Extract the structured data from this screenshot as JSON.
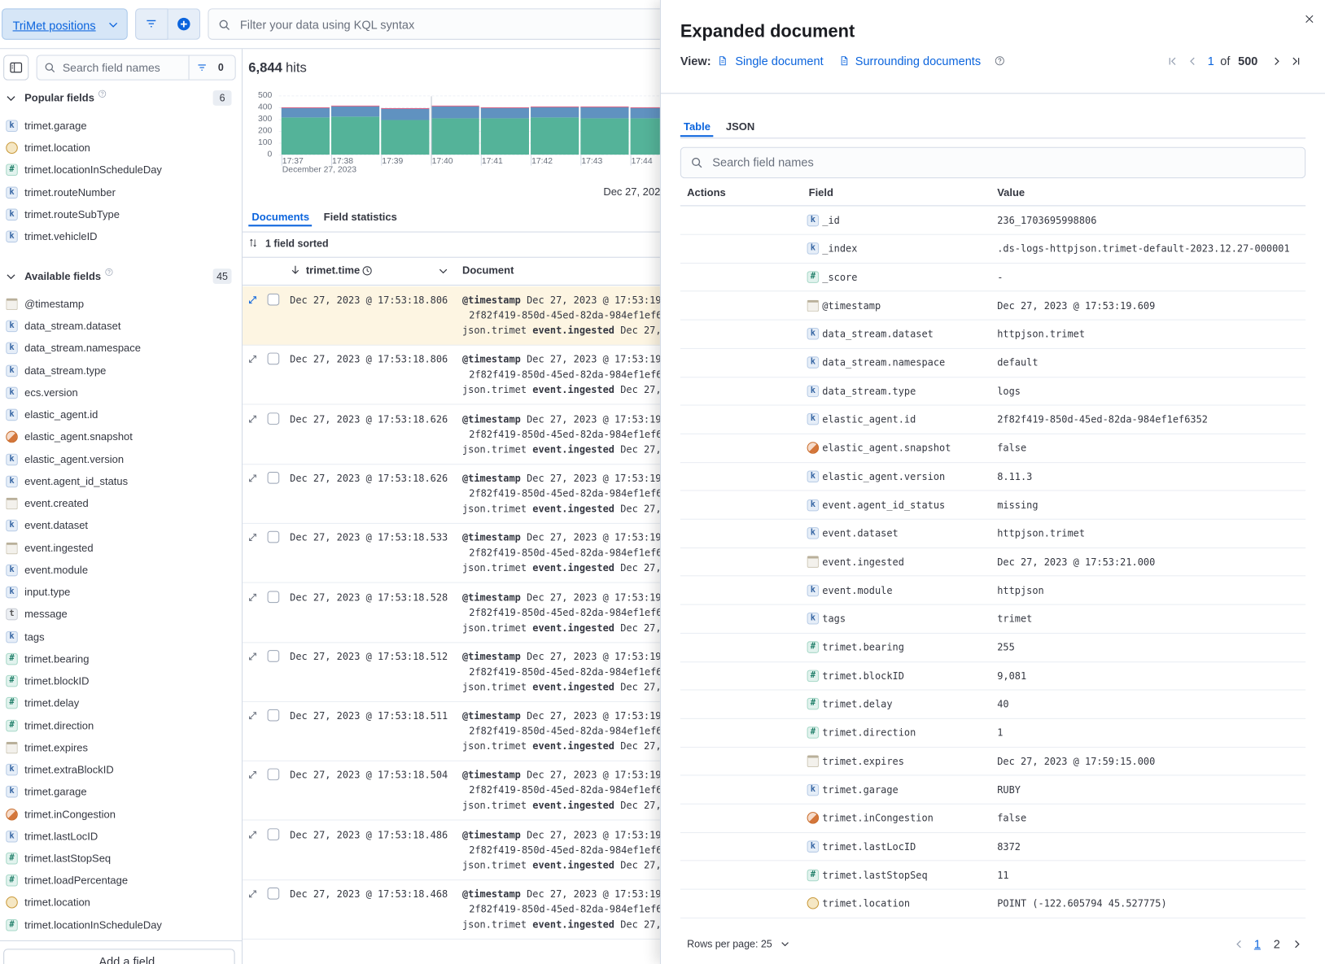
{
  "top_bar": {
    "data_view": "TriMet positions",
    "query_placeholder": "Filter your data using KQL syntax"
  },
  "sidebar": {
    "search_placeholder": "Search field names",
    "filter_count": 0,
    "popular": {
      "title": "Popular fields",
      "count": 6,
      "fields": [
        {
          "type": "k",
          "name": "trimet.garage"
        },
        {
          "type": "geo",
          "name": "trimet.location"
        },
        {
          "type": "#",
          "name": "trimet.locationInScheduleDay"
        },
        {
          "type": "k",
          "name": "trimet.routeNumber"
        },
        {
          "type": "k",
          "name": "trimet.routeSubType"
        },
        {
          "type": "k",
          "name": "trimet.vehicleID"
        }
      ]
    },
    "available": {
      "title": "Available fields",
      "count": 45,
      "fields": [
        {
          "type": "date",
          "name": "@timestamp"
        },
        {
          "type": "k",
          "name": "data_stream.dataset"
        },
        {
          "type": "k",
          "name": "data_stream.namespace"
        },
        {
          "type": "k",
          "name": "data_stream.type"
        },
        {
          "type": "k",
          "name": "ecs.version"
        },
        {
          "type": "k",
          "name": "elastic_agent.id"
        },
        {
          "type": "bool",
          "name": "elastic_agent.snapshot"
        },
        {
          "type": "k",
          "name": "elastic_agent.version"
        },
        {
          "type": "k",
          "name": "event.agent_id_status"
        },
        {
          "type": "date",
          "name": "event.created"
        },
        {
          "type": "k",
          "name": "event.dataset"
        },
        {
          "type": "date",
          "name": "event.ingested"
        },
        {
          "type": "k",
          "name": "event.module"
        },
        {
          "type": "k",
          "name": "input.type"
        },
        {
          "type": "t",
          "name": "message"
        },
        {
          "type": "k",
          "name": "tags"
        },
        {
          "type": "#",
          "name": "trimet.bearing"
        },
        {
          "type": "#",
          "name": "trimet.blockID"
        },
        {
          "type": "#",
          "name": "trimet.delay"
        },
        {
          "type": "#",
          "name": "trimet.direction"
        },
        {
          "type": "date",
          "name": "trimet.expires"
        },
        {
          "type": "k",
          "name": "trimet.extraBlockID"
        },
        {
          "type": "k",
          "name": "trimet.garage"
        },
        {
          "type": "bool",
          "name": "trimet.inCongestion"
        },
        {
          "type": "k",
          "name": "trimet.lastLocID"
        },
        {
          "type": "#",
          "name": "trimet.lastStopSeq"
        },
        {
          "type": "#",
          "name": "trimet.loadPercentage"
        },
        {
          "type": "geo",
          "name": "trimet.location"
        },
        {
          "type": "#",
          "name": "trimet.locationInScheduleDay"
        }
      ]
    },
    "add_field": "Add a field"
  },
  "main": {
    "hits_count": "6,844",
    "hits_label": "hits",
    "chart_data": {
      "type": "bar",
      "stacked": true,
      "categories": [
        "17:37",
        "17:38",
        "17:39",
        "17:40",
        "17:41",
        "17:42",
        "17:43",
        "17:44",
        null
      ],
      "x_axis_date": "December 27, 2023",
      "series": [
        {
          "color": "#54b399",
          "values": [
            314,
            321,
            293,
            307,
            307,
            314,
            307,
            307,
            307
          ]
        },
        {
          "color": "#6092c0",
          "values": [
            79,
            86,
            93,
            100,
            86,
            86,
            93,
            86,
            86
          ]
        },
        {
          "color": "#d36086",
          "values": [
            7,
            7,
            7,
            7,
            7,
            7,
            7,
            7,
            7
          ]
        }
      ],
      "ylim": [
        0,
        500
      ],
      "yticks": [
        0,
        100,
        200,
        300,
        400,
        500
      ]
    },
    "time_range_label": "Dec 27, 202",
    "tabs": [
      "Documents",
      "Field statistics"
    ],
    "sort_info": "1 field sorted",
    "columns": [
      "trimet.time",
      "Document"
    ],
    "document_preview": [
      "@timestamp",
      "Dec 27, 2023 @ 17:53:19",
      "2f82f419-850d-45ed-82da-984ef1ef6",
      "json.trimet",
      "event.ingested",
      "Dec 27,"
    ],
    "rows": [
      "Dec 27, 2023 @ 17:53:18.806",
      "Dec 27, 2023 @ 17:53:18.806",
      "Dec 27, 2023 @ 17:53:18.626",
      "Dec 27, 2023 @ 17:53:18.626",
      "Dec 27, 2023 @ 17:53:18.533",
      "Dec 27, 2023 @ 17:53:18.528",
      "Dec 27, 2023 @ 17:53:18.512",
      "Dec 27, 2023 @ 17:53:18.511",
      "Dec 27, 2023 @ 17:53:18.504",
      "Dec 27, 2023 @ 17:53:18.486",
      "Dec 27, 2023 @ 17:53:18.468"
    ]
  },
  "flyout": {
    "title": "Expanded document",
    "view_label": "View:",
    "view_options": [
      "Single document",
      "Surrounding documents"
    ],
    "pagination": {
      "current": 1,
      "of": "of",
      "total": 500
    },
    "tabs": [
      "Table",
      "JSON"
    ],
    "search_placeholder": "Search field names",
    "columns": [
      "Actions",
      "Field",
      "Value"
    ],
    "fields": [
      {
        "type": "k",
        "name": "_id",
        "value": "236_1703695998806"
      },
      {
        "type": "k",
        "name": "_index",
        "value": ".ds-logs-httpjson.trimet-default-2023.12.27-000001"
      },
      {
        "type": "#",
        "name": "_score",
        "value": "-"
      },
      {
        "type": "date",
        "name": "@timestamp",
        "value": "Dec 27, 2023 @ 17:53:19.609"
      },
      {
        "type": "k",
        "name": "data_stream.dataset",
        "value": "httpjson.trimet"
      },
      {
        "type": "k",
        "name": "data_stream.namespace",
        "value": "default"
      },
      {
        "type": "k",
        "name": "data_stream.type",
        "value": "logs"
      },
      {
        "type": "k",
        "name": "elastic_agent.id",
        "value": "2f82f419-850d-45ed-82da-984ef1ef6352"
      },
      {
        "type": "bool",
        "name": "elastic_agent.snapshot",
        "value": "false"
      },
      {
        "type": "k",
        "name": "elastic_agent.version",
        "value": "8.11.3"
      },
      {
        "type": "k",
        "name": "event.agent_id_status",
        "value": "missing"
      },
      {
        "type": "k",
        "name": "event.dataset",
        "value": "httpjson.trimet"
      },
      {
        "type": "date",
        "name": "event.ingested",
        "value": "Dec 27, 2023 @ 17:53:21.000"
      },
      {
        "type": "k",
        "name": "event.module",
        "value": "httpjson"
      },
      {
        "type": "k",
        "name": "tags",
        "value": "trimet"
      },
      {
        "type": "#",
        "name": "trimet.bearing",
        "value": "255"
      },
      {
        "type": "#",
        "name": "trimet.blockID",
        "value": "9,081"
      },
      {
        "type": "#",
        "name": "trimet.delay",
        "value": "40"
      },
      {
        "type": "#",
        "name": "trimet.direction",
        "value": "1"
      },
      {
        "type": "date",
        "name": "trimet.expires",
        "value": "Dec 27, 2023 @ 17:59:15.000"
      },
      {
        "type": "k",
        "name": "trimet.garage",
        "value": "RUBY"
      },
      {
        "type": "bool",
        "name": "trimet.inCongestion",
        "value": "false"
      },
      {
        "type": "k",
        "name": "trimet.lastLocID",
        "value": "8372"
      },
      {
        "type": "#",
        "name": "trimet.lastStopSeq",
        "value": "11"
      },
      {
        "type": "geo",
        "name": "trimet.location",
        "value": "POINT (-122.605794 45.527775)"
      }
    ],
    "rows_per_page": "Rows per page: 25",
    "pages": [
      1,
      2
    ]
  }
}
